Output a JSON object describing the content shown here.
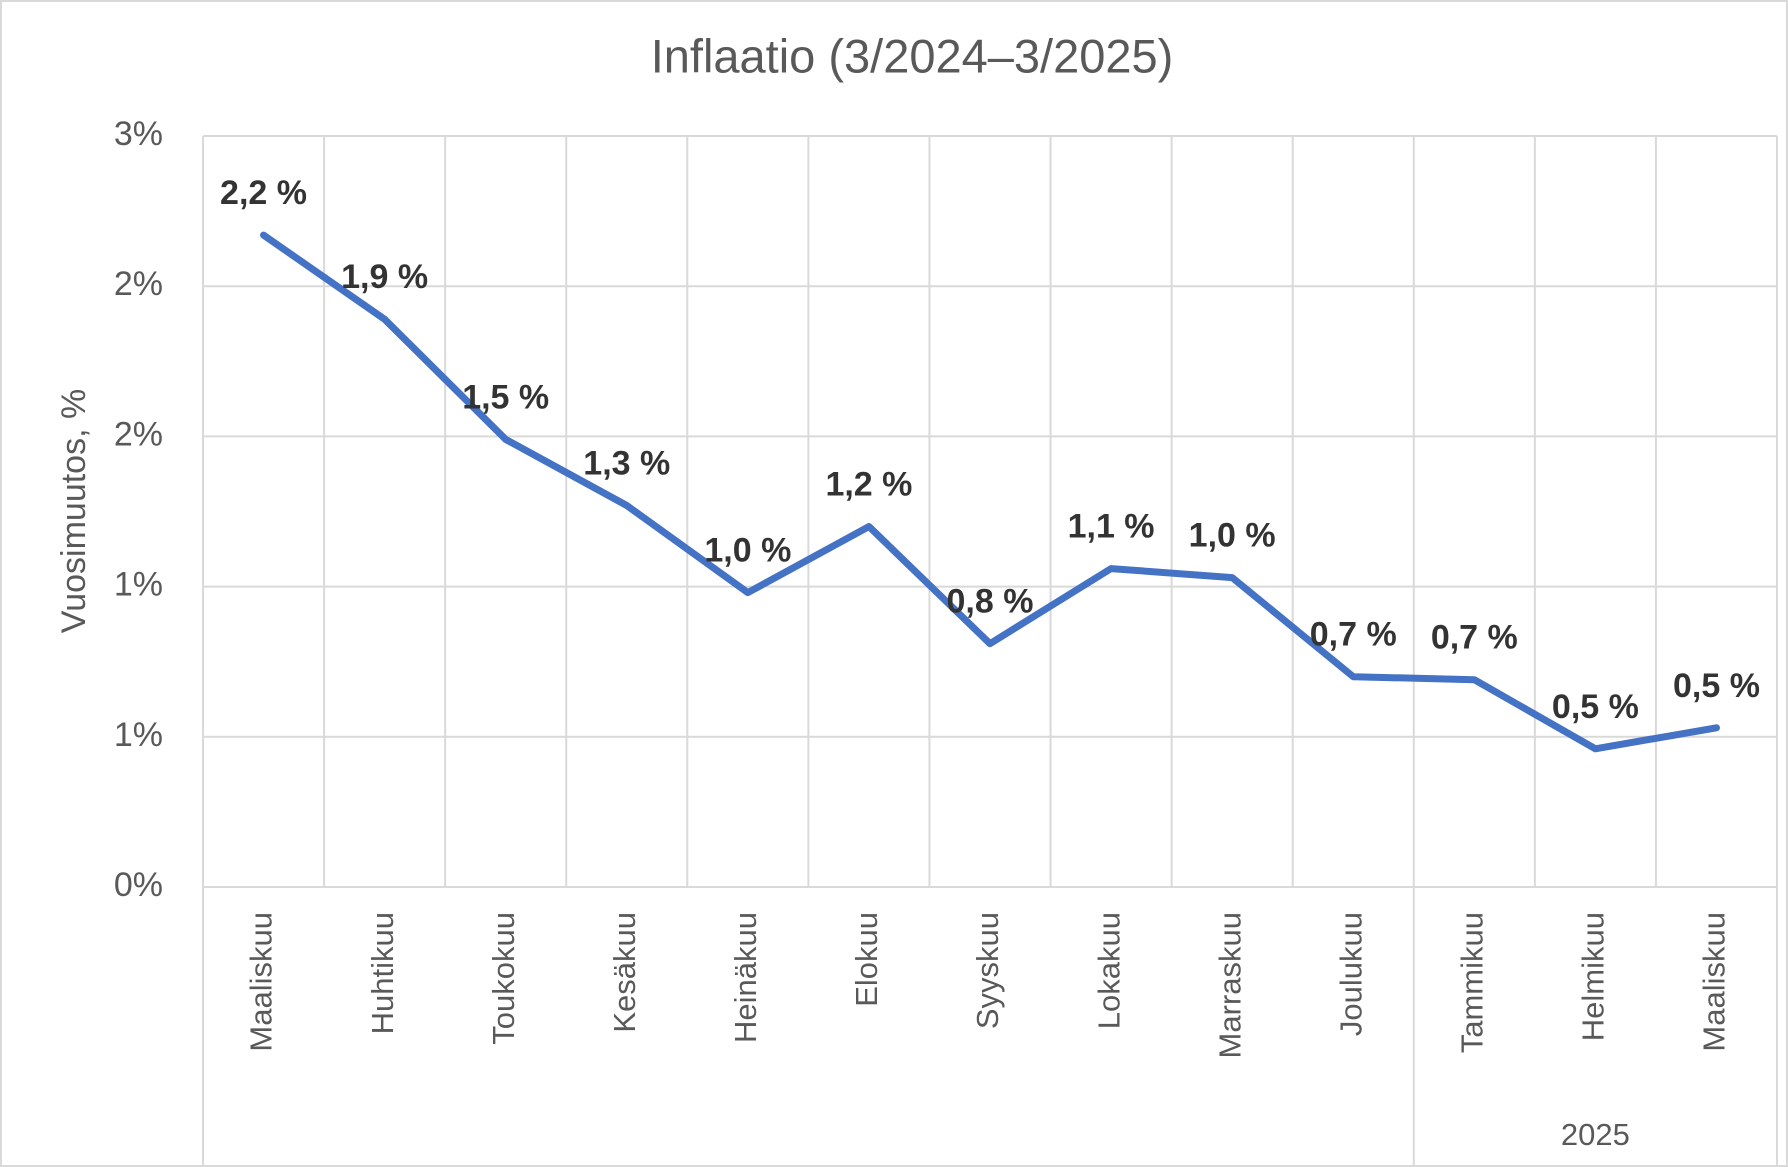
{
  "chart_data": {
    "type": "line",
    "title": "Inflaatio (3/2024–3/2025)",
    "y_label": "Vuosimuutos, %",
    "categories": [
      "Maaliskuu",
      "Huhtikuu",
      "Toukokuu",
      "Kesäkuu",
      "Heinäkuu",
      "Elokuu",
      "Syyskuu",
      "Lokakuu",
      "Marraskuu",
      "Joulukuu",
      "Tammikuu",
      "Helmikuu",
      "Maaliskuu"
    ],
    "x_groups": [
      {
        "label": "2025",
        "start": 10,
        "end": 12
      }
    ],
    "series": [
      {
        "name": "Inflaatio",
        "color": "#4472c4",
        "values": [
          2.17,
          1.89,
          1.49,
          1.27,
          0.98,
          1.2,
          0.81,
          1.06,
          1.03,
          0.7,
          0.69,
          0.46,
          0.53
        ],
        "value_labels": [
          "2,2 %",
          "1,9 %",
          "1,5 %",
          "1,3 %",
          "1,0 %",
          "1,2 %",
          "0,8 %",
          "1,1 %",
          "1,0 %",
          "0,7 %",
          "0,7 %",
          "0,5 %",
          "0,5 %"
        ]
      }
    ],
    "ylim": [
      0,
      2.5
    ],
    "yticks": [
      {
        "value": 0,
        "label": "0%"
      },
      {
        "value": 0.5,
        "label": "1%"
      },
      {
        "value": 1,
        "label": "1%"
      },
      {
        "value": 1.5,
        "label": "2%"
      },
      {
        "value": 2,
        "label": "2%"
      },
      {
        "value": 2.5,
        "label": "3%"
      }
    ],
    "grid": true
  }
}
